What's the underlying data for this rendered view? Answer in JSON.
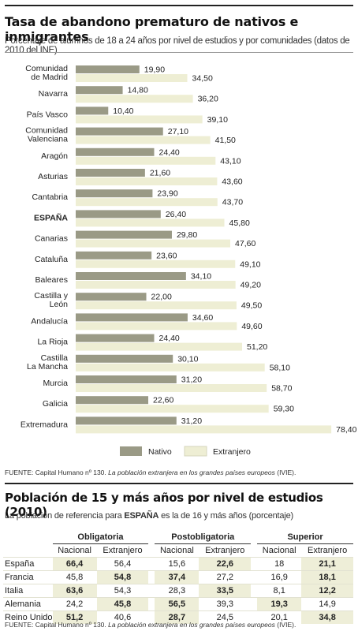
{
  "header": {
    "title": "Tasa de abandono prematuro de nativos e inmigrantes",
    "subtitle": "Porcentaje de alumnos de 18 a 24 años por nivel de estudios y por comunidades (datos de 2010 del INE)"
  },
  "chart_data": {
    "type": "bar",
    "orientation": "horizontal",
    "categories": [
      "Comunidad de Madrid",
      "Navarra",
      "País Vasco",
      "Comunidad Valenciana",
      "Aragón",
      "Asturias",
      "Cantabria",
      "ESPAÑA",
      "Canarias",
      "Cataluña",
      "Baleares",
      "Castilla y León",
      "Andalucía",
      "La Rioja",
      "Castilla La Mancha",
      "Murcia",
      "Galicia",
      "Extremadura"
    ],
    "category_lines": [
      [
        "Comunidad",
        "de Madrid"
      ],
      [
        "Navarra"
      ],
      [
        "País Vasco"
      ],
      [
        "Comunidad",
        "Valenciana"
      ],
      [
        "Aragón"
      ],
      [
        "Asturias"
      ],
      [
        "Cantabria"
      ],
      [
        "ESPAÑA"
      ],
      [
        "Canarias"
      ],
      [
        "Cataluña"
      ],
      [
        "Baleares"
      ],
      [
        "Castilla y",
        "León"
      ],
      [
        "Andalucía"
      ],
      [
        "La Rioja"
      ],
      [
        "Castilla",
        "La Mancha"
      ],
      [
        "Murcia"
      ],
      [
        "Galicia"
      ],
      [
        "Extremadura"
      ]
    ],
    "series": [
      {
        "name": "Nativo",
        "color": "#9a9a86",
        "values": [
          19.9,
          14.8,
          10.4,
          27.1,
          24.4,
          21.6,
          23.9,
          26.4,
          29.8,
          23.6,
          34.1,
          22.0,
          34.6,
          24.4,
          30.1,
          31.2,
          22.6,
          31.2
        ],
        "labels": [
          "19,90",
          "14,80",
          "10,40",
          "27,10",
          "24,40",
          "21,60",
          "23,90",
          "26,40",
          "29,80",
          "23,60",
          "34,10",
          "22,00",
          "34,60",
          "24,40",
          "30,10",
          "31,20",
          "22,60",
          "31,20"
        ]
      },
      {
        "name": "Extranjero",
        "color": "#eeeed4",
        "values": [
          34.5,
          36.2,
          39.1,
          41.5,
          43.1,
          43.6,
          43.7,
          45.8,
          47.6,
          49.1,
          49.2,
          49.5,
          49.6,
          51.2,
          58.1,
          58.7,
          59.3,
          78.4
        ],
        "labels": [
          "34,50",
          "36,20",
          "39,10",
          "41,50",
          "43,10",
          "43,60",
          "43,70",
          "45,80",
          "47,60",
          "49,10",
          "49,20",
          "49,50",
          "49,60",
          "51,20",
          "58,10",
          "58,70",
          "59,30",
          "78,40"
        ]
      }
    ],
    "bold_category": "ESPAÑA",
    "xlim": [
      0,
      80
    ],
    "grid": false,
    "legend": "bottom-center"
  },
  "source1": {
    "prefix": "FUENTE: Capital Humano nº 130.",
    "italic": "La población extranjera en los grandes países europeos",
    "suffix": "(IVIE)."
  },
  "table_section": {
    "title": "Población de 15 y más años por nivel de estudios (2010)",
    "subtitle_before": "La población de referencia para",
    "subtitle_bold": "ESPAÑA",
    "subtitle_after": "es la de 16 y más años (porcentaje)",
    "groups": [
      "Obligatoria",
      "Postobligatoria",
      "Superior"
    ],
    "subheaders": [
      "Nacional",
      "Extranjero"
    ],
    "rows": [
      {
        "country": "España",
        "cells": [
          {
            "v": "66,4",
            "hl": true
          },
          {
            "v": "56,4",
            "hl": false
          },
          {
            "v": "15,6",
            "hl": false
          },
          {
            "v": "22,6",
            "hl": true
          },
          {
            "v": "18",
            "hl": false
          },
          {
            "v": "21,1",
            "hl": true
          }
        ]
      },
      {
        "country": "Francia",
        "cells": [
          {
            "v": "45,8",
            "hl": false
          },
          {
            "v": "54,8",
            "hl": true
          },
          {
            "v": "37,4",
            "hl": true
          },
          {
            "v": "27,2",
            "hl": false
          },
          {
            "v": "16,9",
            "hl": false
          },
          {
            "v": "18,1",
            "hl": true
          }
        ]
      },
      {
        "country": "Italia",
        "cells": [
          {
            "v": "63,6",
            "hl": true
          },
          {
            "v": "54,3",
            "hl": false
          },
          {
            "v": "28,3",
            "hl": false
          },
          {
            "v": "33,5",
            "hl": true
          },
          {
            "v": "8,1",
            "hl": false
          },
          {
            "v": "12,2",
            "hl": true
          }
        ]
      },
      {
        "country": "Alemania",
        "cells": [
          {
            "v": "24,2",
            "hl": false
          },
          {
            "v": "45,8",
            "hl": true
          },
          {
            "v": "56,5",
            "hl": true
          },
          {
            "v": "39,3",
            "hl": false
          },
          {
            "v": "19,3",
            "hl": true
          },
          {
            "v": "14,9",
            "hl": false
          }
        ]
      },
      {
        "country": "Reino Unido",
        "cells": [
          {
            "v": "51,2",
            "hl": true
          },
          {
            "v": "40,6",
            "hl": false
          },
          {
            "v": "28,7",
            "hl": true
          },
          {
            "v": "24,5",
            "hl": false
          },
          {
            "v": "20,1",
            "hl": false
          },
          {
            "v": "34,8",
            "hl": true
          }
        ]
      }
    ]
  },
  "source2": {
    "prefix": "FUENTE: Capital Humano nº 130.",
    "italic": "La población extranjera en los grandes países europeos",
    "suffix": "(IVIE)."
  }
}
